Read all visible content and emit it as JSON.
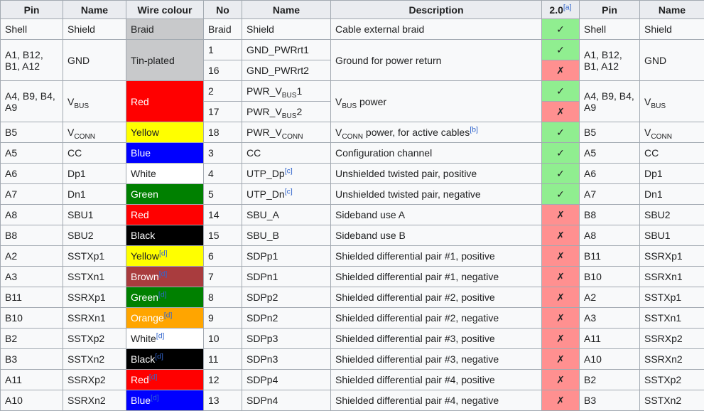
{
  "palette": {
    "yes_bg": "#90EE90",
    "no_bg": "#FF9090",
    "header_bg": "#EAECF0",
    "cell_bg": "#F8F9FA",
    "border": "#A2A9B1",
    "link_blue": "#3366CC",
    "swatch_gray": "#C8C9CB"
  },
  "table": {
    "headers": {
      "pin": "Pin",
      "name": "Name",
      "wire_colour": "Wire colour",
      "no": "No",
      "name2": "Name",
      "description": "Description",
      "usb20": "2.0",
      "usb20_ref": "[a]",
      "pin2": "Pin",
      "name3": "Name"
    },
    "rows": [
      {
        "pin": "Shell",
        "name": "Shield",
        "wire": {
          "label": "Braid",
          "bg": "#C8C9CB",
          "fg": "#202122"
        },
        "no": "Braid",
        "name2": "Shield",
        "desc": "Cable external braid",
        "v20": {
          "mark": "✓",
          "bg": "#90EE90"
        },
        "pin2": "Shell",
        "name3": "Shield"
      },
      {
        "pin": "A1, B12, B1, A12",
        "name": "GND",
        "wire": {
          "label": "Tin-plated",
          "bg": "#C8C9CB",
          "fg": "#202122"
        },
        "desc": "Ground for power return",
        "pin2": "A1, B12, B1, A12",
        "name3": "GND",
        "sub1": {
          "no": "1",
          "name2": "GND_PWRrt1",
          "v20": {
            "mark": "✓",
            "bg": "#90EE90"
          }
        },
        "sub2": {
          "no": "16",
          "name2": "GND_PWRrt2",
          "v20": {
            "mark": "✗",
            "bg": "#FF9090"
          }
        }
      },
      {
        "pin": "A4, B9, B4, A9",
        "name": "V<sub>BUS</sub>",
        "wire": {
          "label": "Red",
          "bg": "#FF0000",
          "fg": "#FFFFFF"
        },
        "desc": "V<sub>BUS</sub> power",
        "pin2": "A4, B9, B4, A9",
        "name3": "V<sub>BUS</sub>",
        "sub1": {
          "no": "2",
          "name2": "PWR_V<sub>BUS</sub>1",
          "v20": {
            "mark": "✓",
            "bg": "#90EE90"
          }
        },
        "sub2": {
          "no": "17",
          "name2": "PWR_V<sub>BUS</sub>2",
          "v20": {
            "mark": "✗",
            "bg": "#FF9090"
          }
        }
      },
      {
        "pin": "B5",
        "name": "V<sub>CONN</sub>",
        "wire": {
          "label": "Yellow",
          "bg": "#FFFF00",
          "fg": "#202122"
        },
        "no": "18",
        "name2": "PWR_V<sub>CONN</sub>",
        "desc": "V<sub>CONN</sub> power, for active cables",
        "desc_ref": "[b]",
        "v20": {
          "mark": "✓",
          "bg": "#90EE90"
        },
        "pin2": "B5",
        "name3": "V<sub>CONN</sub>"
      },
      {
        "pin": "A5",
        "name": "CC",
        "wire": {
          "label": "Blue",
          "bg": "#0000FF",
          "fg": "#FFFFFF"
        },
        "no": "3",
        "name2": "CC",
        "desc": "Configuration channel",
        "v20": {
          "mark": "✓",
          "bg": "#90EE90"
        },
        "pin2": "A5",
        "name3": "CC"
      },
      {
        "pin": "A6",
        "name": "Dp1",
        "wire": {
          "label": "White",
          "bg": "#FFFFFF",
          "fg": "#202122"
        },
        "no": "4",
        "name2": "UTP_Dp",
        "name2_ref": "[c]",
        "desc": "Unshielded twisted pair, positive",
        "v20": {
          "mark": "✓",
          "bg": "#90EE90"
        },
        "pin2": "A6",
        "name3": "Dp1"
      },
      {
        "pin": "A7",
        "name": "Dn1",
        "wire": {
          "label": "Green",
          "bg": "#008000",
          "fg": "#FFFFFF"
        },
        "no": "5",
        "name2": "UTP_Dn",
        "name2_ref": "[c]",
        "desc": "Unshielded twisted pair, negative",
        "v20": {
          "mark": "✓",
          "bg": "#90EE90"
        },
        "pin2": "A7",
        "name3": "Dn1"
      },
      {
        "pin": "A8",
        "name": "SBU1",
        "wire": {
          "label": "Red",
          "bg": "#FF0000",
          "fg": "#FFFFFF"
        },
        "no": "14",
        "name2": "SBU_A",
        "desc": "Sideband use A",
        "v20": {
          "mark": "✗",
          "bg": "#FF9090"
        },
        "pin2": "B8",
        "name3": "SBU2"
      },
      {
        "pin": "B8",
        "name": "SBU2",
        "wire": {
          "label": "Black",
          "bg": "#000000",
          "fg": "#FFFFFF"
        },
        "no": "15",
        "name2": "SBU_B",
        "desc": "Sideband use B",
        "v20": {
          "mark": "✗",
          "bg": "#FF9090"
        },
        "pin2": "A8",
        "name3": "SBU1"
      },
      {
        "pin": "A2",
        "name": "SSTXp1",
        "wire": {
          "label": "Yellow",
          "ref": "[d]",
          "bg": "#FFFF00",
          "fg": "#202122"
        },
        "no": "6",
        "name2": "SDPp1",
        "desc": "Shielded differential pair #1, positive",
        "v20": {
          "mark": "✗",
          "bg": "#FF9090"
        },
        "pin2": "B11",
        "name3": "SSRXp1"
      },
      {
        "pin": "A3",
        "name": "SSTXn1",
        "wire": {
          "label": "Brown",
          "ref": "[d]",
          "bg": "#A93C3E",
          "fg": "#FFFFFF"
        },
        "no": "7",
        "name2": "SDPn1",
        "desc": "Shielded differential pair #1, negative",
        "v20": {
          "mark": "✗",
          "bg": "#FF9090"
        },
        "pin2": "B10",
        "name3": "SSRXn1"
      },
      {
        "pin": "B11",
        "name": "SSRXp1",
        "wire": {
          "label": "Green",
          "ref": "[d]",
          "bg": "#008000",
          "fg": "#FFFFFF"
        },
        "no": "8",
        "name2": "SDPp2",
        "desc": "Shielded differential pair #2, positive",
        "v20": {
          "mark": "✗",
          "bg": "#FF9090"
        },
        "pin2": "A2",
        "name3": "SSTXp1"
      },
      {
        "pin": "B10",
        "name": "SSRXn1",
        "wire": {
          "label": "Orange",
          "ref": "[d]",
          "bg": "#FFA500",
          "fg": "#FFFFFF"
        },
        "no": "9",
        "name2": "SDPn2",
        "desc": "Shielded differential pair #2, negative",
        "v20": {
          "mark": "✗",
          "bg": "#FF9090"
        },
        "pin2": "A3",
        "name3": "SSTXn1"
      },
      {
        "pin": "B2",
        "name": "SSTXp2",
        "wire": {
          "label": "White",
          "ref": "[d]",
          "bg": "#FFFFFF",
          "fg": "#202122"
        },
        "no": "10",
        "name2": "SDPp3",
        "desc": "Shielded differential pair #3, positive",
        "v20": {
          "mark": "✗",
          "bg": "#FF9090"
        },
        "pin2": "A11",
        "name3": "SSRXp2"
      },
      {
        "pin": "B3",
        "name": "SSTXn2",
        "wire": {
          "label": "Black",
          "ref": "[d]",
          "bg": "#000000",
          "fg": "#FFFFFF"
        },
        "no": "11",
        "name2": "SDPn3",
        "desc": "Shielded differential pair #3, negative",
        "v20": {
          "mark": "✗",
          "bg": "#FF9090"
        },
        "pin2": "A10",
        "name3": "SSRXn2"
      },
      {
        "pin": "A11",
        "name": "SSRXp2",
        "wire": {
          "label": "Red",
          "ref": "[d]",
          "bg": "#FF0000",
          "fg": "#FFFFFF"
        },
        "no": "12",
        "name2": "SDPp4",
        "desc": "Shielded differential pair #4, positive",
        "v20": {
          "mark": "✗",
          "bg": "#FF9090"
        },
        "pin2": "B2",
        "name3": "SSTXp2"
      },
      {
        "pin": "A10",
        "name": "SSRXn2",
        "wire": {
          "label": "Blue",
          "ref": "[d]",
          "bg": "#0000FF",
          "fg": "#FFFFFF"
        },
        "no": "13",
        "name2": "SDPn4",
        "desc": "Shielded differential pair #4, negative",
        "v20": {
          "mark": "✗",
          "bg": "#FF9090"
        },
        "pin2": "B3",
        "name3": "SSTXn2"
      }
    ]
  }
}
